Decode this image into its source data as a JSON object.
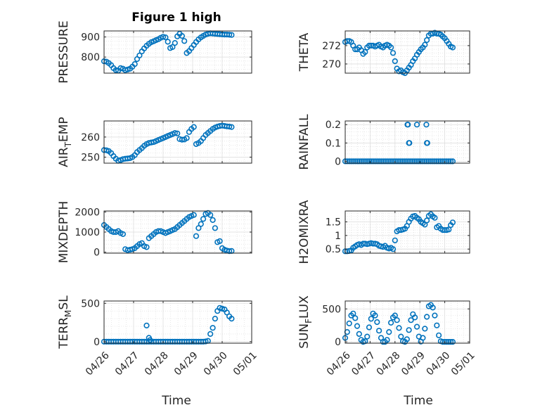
{
  "figure": {
    "title": "Figure 1 high",
    "marker_color": "#0072BD",
    "marker": "open-circle",
    "grid": "on, major and minor"
  },
  "chart_data": [
    {
      "type": "scatter",
      "ylabel": "PRESSURE",
      "ylim": [
        720,
        930
      ],
      "yticks": [
        800,
        900
      ],
      "xlim": [
        "04/26",
        "05/01"
      ],
      "xticks": [
        "04/26",
        "04/27",
        "04/28",
        "04/29",
        "04/30",
        "05/01"
      ],
      "x_days": [
        0.0,
        0.08,
        0.16,
        0.24,
        0.32,
        0.4,
        0.48,
        0.56,
        0.64,
        0.72,
        0.8,
        0.88,
        0.96,
        1.04,
        1.12,
        1.2,
        1.28,
        1.36,
        1.44,
        1.52,
        1.6,
        1.68,
        1.76,
        1.84,
        1.92,
        2.0,
        2.08,
        2.16,
        2.24,
        2.32,
        2.4,
        2.48,
        2.56,
        2.64,
        2.72,
        2.8,
        2.88,
        2.96,
        3.04,
        3.12,
        3.2,
        3.28,
        3.36,
        3.44,
        3.52,
        3.6,
        3.68,
        3.76,
        3.84,
        3.92,
        4.0,
        4.08,
        4.16,
        4.24,
        4.32
      ],
      "values": [
        779,
        777,
        770,
        760,
        745,
        735,
        733,
        745,
        742,
        735,
        738,
        742,
        752,
        765,
        790,
        808,
        828,
        843,
        856,
        866,
        874,
        879,
        884,
        889,
        896,
        901,
        898,
        876,
        845,
        850,
        870,
        903,
        916,
        905,
        880,
        820,
        830,
        845,
        860,
        875,
        888,
        898,
        905,
        912,
        916,
        918,
        917,
        916,
        915,
        914,
        913,
        912,
        912,
        911,
        910
      ]
    },
    {
      "type": "scatter",
      "ylabel": "THETA",
      "ylim": [
        269,
        273.6
      ],
      "yticks": [
        270,
        272
      ],
      "xlim": [
        "04/26",
        "05/01"
      ],
      "xticks": [
        "04/26",
        "04/27",
        "04/28",
        "04/29",
        "04/30",
        "05/01"
      ],
      "x_days": [
        0.0,
        0.08,
        0.16,
        0.24,
        0.32,
        0.4,
        0.48,
        0.56,
        0.64,
        0.72,
        0.8,
        0.88,
        0.96,
        1.04,
        1.12,
        1.2,
        1.28,
        1.36,
        1.44,
        1.52,
        1.6,
        1.68,
        1.76,
        1.84,
        1.92,
        2.0,
        2.08,
        2.16,
        2.24,
        2.32,
        2.4,
        2.48,
        2.56,
        2.64,
        2.72,
        2.8,
        2.88,
        2.96,
        3.04,
        3.12,
        3.2,
        3.28,
        3.36,
        3.44,
        3.52,
        3.6,
        3.68,
        3.76,
        3.84,
        3.92,
        4.0,
        4.08,
        4.16,
        4.24,
        4.32
      ],
      "values": [
        272.4,
        272.5,
        272.5,
        272.4,
        272.0,
        271.6,
        271.6,
        271.8,
        271.5,
        271.1,
        271.3,
        271.8,
        272.0,
        272.0,
        272.0,
        271.9,
        272.0,
        272.1,
        271.9,
        271.8,
        272.0,
        272.1,
        272.0,
        271.8,
        271.2,
        270.3,
        269.5,
        269.2,
        269.3,
        269.1,
        269.0,
        269.3,
        269.6,
        269.9,
        270.3,
        270.6,
        271.0,
        271.3,
        271.6,
        271.8,
        272.1,
        272.6,
        273.1,
        273.3,
        273.3,
        273.4,
        273.3,
        273.3,
        273.2,
        273.0,
        272.8,
        272.5,
        272.2,
        271.9,
        271.8
      ]
    },
    {
      "type": "scatter",
      "ylabel": "AIR_TEMP",
      "ylim": [
        247,
        268
      ],
      "yticks": [
        250,
        260
      ],
      "xlim": [
        "04/26",
        "05/01"
      ],
      "xticks": [
        "04/26",
        "04/27",
        "04/28",
        "04/29",
        "04/30",
        "05/01"
      ],
      "x_days": [
        0.0,
        0.08,
        0.16,
        0.24,
        0.32,
        0.4,
        0.48,
        0.56,
        0.64,
        0.72,
        0.8,
        0.88,
        0.96,
        1.04,
        1.12,
        1.2,
        1.28,
        1.36,
        1.44,
        1.52,
        1.6,
        1.68,
        1.76,
        1.84,
        1.92,
        2.0,
        2.08,
        2.16,
        2.24,
        2.32,
        2.4,
        2.48,
        2.56,
        2.64,
        2.72,
        2.8,
        2.88,
        2.96,
        3.04,
        3.12,
        3.2,
        3.28,
        3.36,
        3.44,
        3.52,
        3.6,
        3.68,
        3.76,
        3.84,
        3.92,
        4.0,
        4.08,
        4.16,
        4.24,
        4.32
      ],
      "values": [
        253.5,
        253.4,
        253.0,
        252.0,
        250.5,
        249.2,
        248.2,
        248.5,
        249.0,
        249.2,
        249.3,
        249.5,
        250.0,
        251.0,
        252.5,
        253.5,
        254.5,
        255.6,
        256.5,
        257.0,
        257.3,
        257.5,
        258.0,
        258.5,
        259.0,
        259.5,
        260.0,
        260.5,
        261.0,
        261.5,
        262.0,
        261.8,
        259.0,
        258.7,
        258.8,
        259.5,
        262.5,
        264.0,
        265.0,
        256.5,
        257.0,
        258.0,
        259.5,
        261.0,
        262.0,
        263.0,
        264.0,
        264.7,
        265.2,
        265.5,
        265.7,
        265.5,
        265.3,
        265.2,
        265.0
      ]
    },
    {
      "type": "scatter",
      "ylabel": "RAINFALL",
      "ylim": [
        -0.01,
        0.22
      ],
      "yticks": [
        0,
        0.1,
        0.2
      ],
      "xlim": [
        "04/26",
        "05/01"
      ],
      "xticks": [
        "04/26",
        "04/27",
        "04/28",
        "04/29",
        "04/30",
        "05/01"
      ],
      "x_days": [
        0.0,
        0.08,
        0.16,
        0.24,
        0.32,
        0.4,
        0.48,
        0.56,
        0.64,
        0.72,
        0.8,
        0.88,
        0.96,
        1.04,
        1.12,
        1.2,
        1.28,
        1.36,
        1.44,
        1.52,
        1.6,
        1.68,
        1.76,
        1.84,
        1.92,
        2.0,
        2.08,
        2.16,
        2.24,
        2.32,
        2.4,
        2.48,
        2.56,
        2.64,
        2.72,
        2.8,
        2.88,
        2.96,
        3.04,
        3.12,
        3.2,
        3.28,
        3.36,
        3.44,
        3.52,
        3.6,
        3.68,
        3.76,
        3.84,
        3.92,
        4.0,
        4.08,
        4.16,
        4.24,
        4.32,
        2.5,
        2.52,
        2.56,
        2.58,
        2.88,
        3.26,
        3.28,
        3.3
      ],
      "values": [
        0,
        0,
        0,
        0,
        0,
        0,
        0,
        0,
        0,
        0,
        0,
        0,
        0,
        0,
        0,
        0,
        0,
        0,
        0,
        0,
        0,
        0,
        0,
        0,
        0,
        0,
        0,
        0,
        0,
        0,
        0,
        0,
        0,
        0,
        0,
        0,
        0,
        0,
        0,
        0,
        0,
        0,
        0,
        0,
        0,
        0,
        0,
        0,
        0,
        0,
        0,
        0,
        0,
        0,
        0,
        0.2,
        0.2,
        0.1,
        0.1,
        0.2,
        0.2,
        0.1,
        0.1
      ]
    },
    {
      "type": "scatter",
      "ylabel": "MIXDEPTH",
      "ylim": [
        -50,
        2050
      ],
      "yticks": [
        0,
        1000,
        2000
      ],
      "xlim": [
        "04/26",
        "05/01"
      ],
      "xticks": [
        "04/26",
        "04/27",
        "04/28",
        "04/29",
        "04/30",
        "05/01"
      ],
      "x_days": [
        0.0,
        0.08,
        0.16,
        0.24,
        0.32,
        0.4,
        0.48,
        0.56,
        0.64,
        0.72,
        0.8,
        0.88,
        0.96,
        1.04,
        1.12,
        1.2,
        1.28,
        1.36,
        1.44,
        1.52,
        1.6,
        1.68,
        1.76,
        1.84,
        1.92,
        2.0,
        2.08,
        2.16,
        2.24,
        2.32,
        2.4,
        2.48,
        2.56,
        2.64,
        2.72,
        2.8,
        2.88,
        2.96,
        3.04,
        3.12,
        3.2,
        3.28,
        3.36,
        3.44,
        3.52,
        3.6,
        3.68,
        3.76,
        3.84,
        3.92,
        4.0,
        4.08,
        4.16,
        4.24,
        4.32
      ],
      "values": [
        1350,
        1250,
        1150,
        1050,
        1000,
        1000,
        1050,
        950,
        900,
        150,
        100,
        120,
        150,
        200,
        300,
        400,
        450,
        300,
        250,
        700,
        800,
        900,
        1000,
        1050,
        1050,
        1000,
        950,
        1000,
        1050,
        1100,
        1150,
        1250,
        1350,
        1450,
        1550,
        1650,
        1750,
        1800,
        1850,
        800,
        1200,
        1400,
        1650,
        1900,
        1950,
        1850,
        1600,
        1200,
        500,
        550,
        200,
        120,
        80,
        50,
        60
      ]
    },
    {
      "type": "scatter",
      "ylabel": "H2OMIXRA",
      "ylim": [
        0.35,
        1.9
      ],
      "yticks": [
        0.5,
        1,
        1.5
      ],
      "xlim": [
        "04/26",
        "05/01"
      ],
      "xticks": [
        "04/26",
        "04/27",
        "04/28",
        "04/29",
        "04/30",
        "05/01"
      ],
      "x_days": [
        0.0,
        0.08,
        0.16,
        0.24,
        0.32,
        0.4,
        0.48,
        0.56,
        0.64,
        0.72,
        0.8,
        0.88,
        0.96,
        1.04,
        1.12,
        1.2,
        1.28,
        1.36,
        1.44,
        1.52,
        1.6,
        1.68,
        1.76,
        1.84,
        1.92,
        2.0,
        2.08,
        2.16,
        2.24,
        2.32,
        2.4,
        2.48,
        2.56,
        2.64,
        2.72,
        2.8,
        2.88,
        2.96,
        3.04,
        3.12,
        3.2,
        3.28,
        3.36,
        3.44,
        3.52,
        3.6,
        3.68,
        3.76,
        3.84,
        3.92,
        4.0,
        4.08,
        4.16,
        4.24,
        4.32
      ],
      "values": [
        0.42,
        0.42,
        0.43,
        0.45,
        0.55,
        0.6,
        0.65,
        0.68,
        0.65,
        0.7,
        0.7,
        0.68,
        0.7,
        0.72,
        0.7,
        0.7,
        0.68,
        0.62,
        0.6,
        0.58,
        0.62,
        0.55,
        0.52,
        0.55,
        0.5,
        0.82,
        1.15,
        1.2,
        1.2,
        1.22,
        1.25,
        1.35,
        1.5,
        1.62,
        1.7,
        1.72,
        1.65,
        1.6,
        1.5,
        1.45,
        1.4,
        1.55,
        1.72,
        1.78,
        1.7,
        1.65,
        1.3,
        1.35,
        1.25,
        1.2,
        1.2,
        1.2,
        1.22,
        1.38,
        1.48
      ]
    },
    {
      "type": "scatter",
      "ylabel": "TERR_MSL",
      "ylim": [
        -20,
        530
      ],
      "yticks": [
        0,
        500
      ],
      "xlim": [
        "04/26",
        "05/01"
      ],
      "xticks": [
        "04/26",
        "04/27",
        "04/28",
        "04/29",
        "04/30",
        "05/01"
      ],
      "x_days": [
        0.0,
        0.08,
        0.16,
        0.24,
        0.32,
        0.4,
        0.48,
        0.56,
        0.64,
        0.72,
        0.8,
        0.88,
        0.96,
        1.04,
        1.12,
        1.2,
        1.28,
        1.36,
        1.44,
        1.52,
        1.6,
        1.68,
        1.76,
        1.84,
        1.92,
        2.0,
        2.08,
        2.16,
        2.24,
        2.32,
        2.4,
        2.48,
        2.56,
        2.64,
        2.72,
        2.8,
        2.88,
        2.96,
        3.04,
        3.12,
        3.2,
        3.28,
        3.36,
        3.44,
        3.52,
        3.6,
        3.68,
        3.76,
        3.84,
        3.92,
        4.0,
        4.08,
        4.16,
        4.24,
        4.32,
        1.44,
        1.52,
        1.56
      ],
      "values": [
        0,
        0,
        0,
        0,
        0,
        0,
        0,
        0,
        0,
        0,
        0,
        0,
        0,
        0,
        0,
        0,
        0,
        0,
        0,
        0,
        0,
        0,
        0,
        0,
        0,
        0,
        0,
        0,
        0,
        0,
        0,
        0,
        0,
        0,
        0,
        0,
        0,
        0,
        0,
        0,
        0,
        0,
        0,
        3,
        10,
        100,
        180,
        300,
        400,
        440,
        430,
        420,
        380,
        330,
        300,
        210,
        50,
        20
      ]
    },
    {
      "type": "scatter",
      "ylabel": "SUN_FLUX",
      "ylim": [
        -20,
        620
      ],
      "yticks": [
        0,
        500
      ],
      "xlim": [
        "04/26",
        "05/01"
      ],
      "xticks": [
        "04/26",
        "04/27",
        "04/28",
        "04/29",
        "04/30",
        "05/01"
      ],
      "x_days": [
        0.0,
        0.08,
        0.16,
        0.24,
        0.32,
        0.4,
        0.48,
        0.56,
        0.64,
        0.72,
        0.8,
        0.88,
        0.96,
        1.04,
        1.12,
        1.2,
        1.28,
        1.36,
        1.44,
        1.52,
        1.6,
        1.68,
        1.76,
        1.84,
        1.92,
        2.0,
        2.08,
        2.16,
        2.24,
        2.32,
        2.4,
        2.48,
        2.56,
        2.64,
        2.72,
        2.8,
        2.88,
        2.96,
        3.04,
        3.12,
        3.2,
        3.28,
        3.36,
        3.44,
        3.52,
        3.6,
        3.68,
        3.76,
        3.84,
        3.92,
        4.0,
        4.08,
        4.16,
        4.24,
        4.32
      ],
      "values": [
        60,
        150,
        280,
        400,
        430,
        360,
        240,
        120,
        30,
        0,
        10,
        80,
        220,
        350,
        430,
        400,
        300,
        170,
        60,
        0,
        0,
        30,
        150,
        290,
        370,
        400,
        330,
        210,
        80,
        10,
        0,
        40,
        180,
        330,
        420,
        370,
        230,
        80,
        5,
        60,
        200,
        380,
        540,
        560,
        520,
        400,
        250,
        100,
        10,
        0,
        0,
        0,
        0,
        0,
        0
      ]
    }
  ],
  "axes_text": {
    "ylabels": [
      "PRESSURE",
      "THETA",
      "AIR",
      "RAINFALL",
      "MIXDEPTH",
      "H2OMIXRA",
      "TERR",
      "SUN"
    ],
    "ylabel_sub": [
      "",
      "",
      "T",
      "",
      "",
      "",
      "M",
      "F"
    ],
    "ylabel_tail": [
      "",
      "",
      "EMP",
      "",
      "",
      "",
      "SL",
      "LUX"
    ],
    "xlabel": "Time"
  }
}
